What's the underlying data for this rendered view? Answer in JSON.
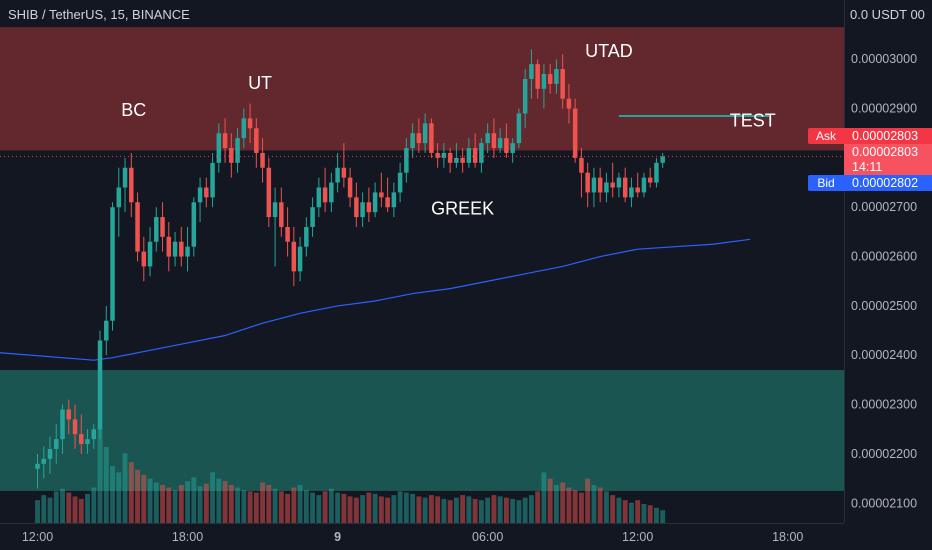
{
  "header": {
    "symbol_title": "SHIB / TetherUS, 15, BINANCE"
  },
  "price_scale": {
    "currency": "0.0 USDT 00"
  },
  "quote": {
    "ask_label": "Ask",
    "ask_price": "0.00002803",
    "last_price": "0.00002803",
    "countdown": "14:11",
    "bid_label": "Bid",
    "bid_price": "0.00002802"
  },
  "colors": {
    "background": "#131722",
    "up": "#26a69a",
    "down": "#ef5350",
    "upper_zone": "#6d2a2f",
    "lower_zone": "#1d5c57",
    "ma_line": "#2962ff",
    "ask": "#f23645",
    "bid": "#2962ff",
    "test_line": "#26a69a"
  },
  "chart_data": {
    "type": "candlestick",
    "title": "SHIB / TetherUS, 15, BINANCE",
    "x_tick_labels": [
      "12:00",
      "18:00",
      "9",
      "06:00",
      "12:00",
      "18:00"
    ],
    "y_tick_labels": [
      "0.00003000",
      "0.00002900",
      "0.00002800",
      "0.00002700",
      "0.00002600",
      "0.00002500",
      "0.00002400",
      "0.00002300",
      "0.00002200",
      "0.00002100"
    ],
    "x_tick_values": [
      0,
      24,
      48,
      72,
      96,
      120
    ],
    "y_tick_values": [
      3e-05,
      2.9e-05,
      2.8e-05,
      2.7e-05,
      2.6e-05,
      2.5e-05,
      2.4e-05,
      2.3e-05,
      2.2e-05,
      2.1e-05
    ],
    "ylim": [
      2.06e-05,
      3.12e-05
    ],
    "xlim": [
      -6,
      129
    ],
    "zones": [
      {
        "name": "upper-zone",
        "from": 2.815e-05,
        "to": 3.065e-05
      },
      {
        "name": "lower-zone",
        "from": 2.125e-05,
        "to": 2.37e-05
      }
    ],
    "horizontal_segments": [
      {
        "name": "test-line",
        "x_from": 93,
        "x_to": 117,
        "y": 2.885e-05
      }
    ],
    "annotations": [
      {
        "text": "BC",
        "x": 15.4,
        "y": 2.885e-05
      },
      {
        "text": "UT",
        "x": 35.6,
        "y": 2.94e-05
      },
      {
        "text": "GREEK",
        "x": 68.0,
        "y": 2.685e-05
      },
      {
        "text": "UTAD",
        "x": 91.4,
        "y": 3.004e-05
      },
      {
        "text": "TEST",
        "x": 114.4,
        "y": 2.864e-05
      }
    ],
    "moving_average": {
      "x": [
        -6,
        9,
        12,
        18,
        24,
        30,
        36,
        42,
        48,
        54,
        60,
        66,
        72,
        78,
        84,
        90,
        96,
        102,
        108,
        114
      ],
      "y": [
        2.405e-05,
        2.39e-05,
        2.395e-05,
        2.41e-05,
        2.425e-05,
        2.44e-05,
        2.465e-05,
        2.485e-05,
        2.5e-05,
        2.51e-05,
        2.525e-05,
        2.535e-05,
        2.55e-05,
        2.565e-05,
        2.58e-05,
        2.6e-05,
        2.615e-05,
        2.62e-05,
        2.625e-05,
        2.635e-05
      ]
    },
    "candles": [
      {
        "o": 2.17e-05,
        "h": 2.2e-05,
        "l": 2.13e-05,
        "c": 2.18e-05
      },
      {
        "o": 2.18e-05,
        "h": 2.215e-05,
        "l": 2.15e-05,
        "c": 2.19e-05
      },
      {
        "o": 2.19e-05,
        "h": 2.235e-05,
        "l": 2.16e-05,
        "c": 2.21e-05
      },
      {
        "o": 2.21e-05,
        "h": 2.26e-05,
        "l": 2.18e-05,
        "c": 2.23e-05
      },
      {
        "o": 2.23e-05,
        "h": 2.3e-05,
        "l": 2.2e-05,
        "c": 2.29e-05
      },
      {
        "o": 2.29e-05,
        "h": 2.31e-05,
        "l": 2.24e-05,
        "c": 2.27e-05
      },
      {
        "o": 2.27e-05,
        "h": 2.3e-05,
        "l": 2.21e-05,
        "c": 2.24e-05
      },
      {
        "o": 2.24e-05,
        "h": 2.28e-05,
        "l": 2.2e-05,
        "c": 2.22e-05
      },
      {
        "o": 2.22e-05,
        "h": 2.25e-05,
        "l": 2.2e-05,
        "c": 2.23e-05
      },
      {
        "o": 2.23e-05,
        "h": 2.26e-05,
        "l": 2.21e-05,
        "c": 2.25e-05
      },
      {
        "o": 2.25e-05,
        "h": 2.45e-05,
        "l": 2.23e-05,
        "c": 2.43e-05
      },
      {
        "o": 2.43e-05,
        "h": 2.5e-05,
        "l": 2.4e-05,
        "c": 2.47e-05
      },
      {
        "o": 2.47e-05,
        "h": 2.71e-05,
        "l": 2.45e-05,
        "c": 2.7e-05
      },
      {
        "o": 2.7e-05,
        "h": 2.78e-05,
        "l": 2.64e-05,
        "c": 2.74e-05
      },
      {
        "o": 2.74e-05,
        "h": 2.8e-05,
        "l": 2.69e-05,
        "c": 2.78e-05
      },
      {
        "o": 2.78e-05,
        "h": 2.81e-05,
        "l": 2.68e-05,
        "c": 2.71e-05
      },
      {
        "o": 2.71e-05,
        "h": 2.73e-05,
        "l": 2.59e-05,
        "c": 2.61e-05
      },
      {
        "o": 2.61e-05,
        "h": 2.64e-05,
        "l": 2.55e-05,
        "c": 2.58e-05
      },
      {
        "o": 2.58e-05,
        "h": 2.66e-05,
        "l": 2.56e-05,
        "c": 2.63e-05
      },
      {
        "o": 2.63e-05,
        "h": 2.7e-05,
        "l": 2.61e-05,
        "c": 2.68e-05
      },
      {
        "o": 2.68e-05,
        "h": 2.71e-05,
        "l": 2.61e-05,
        "c": 2.64e-05
      },
      {
        "o": 2.64e-05,
        "h": 2.67e-05,
        "l": 2.57e-05,
        "c": 2.6e-05
      },
      {
        "o": 2.6e-05,
        "h": 2.65e-05,
        "l": 2.58e-05,
        "c": 2.63e-05
      },
      {
        "o": 2.63e-05,
        "h": 2.66e-05,
        "l": 2.58e-05,
        "c": 2.6e-05
      },
      {
        "o": 2.6e-05,
        "h": 2.66e-05,
        "l": 2.57e-05,
        "c": 2.62e-05
      },
      {
        "o": 2.62e-05,
        "h": 2.72e-05,
        "l": 2.6e-05,
        "c": 2.71e-05
      },
      {
        "o": 2.71e-05,
        "h": 2.76e-05,
        "l": 2.67e-05,
        "c": 2.74e-05
      },
      {
        "o": 2.74e-05,
        "h": 2.76e-05,
        "l": 2.7e-05,
        "c": 2.72e-05
      },
      {
        "o": 2.72e-05,
        "h": 2.81e-05,
        "l": 2.7e-05,
        "c": 2.79e-05
      },
      {
        "o": 2.79e-05,
        "h": 2.87e-05,
        "l": 2.77e-05,
        "c": 2.85e-05
      },
      {
        "o": 2.85e-05,
        "h": 2.88e-05,
        "l": 2.79e-05,
        "c": 2.82e-05
      },
      {
        "o": 2.82e-05,
        "h": 2.85e-05,
        "l": 2.76e-05,
        "c": 2.79e-05
      },
      {
        "o": 2.79e-05,
        "h": 2.86e-05,
        "l": 2.77e-05,
        "c": 2.84e-05
      },
      {
        "o": 2.84e-05,
        "h": 2.9e-05,
        "l": 2.82e-05,
        "c": 2.88e-05
      },
      {
        "o": 2.88e-05,
        "h": 2.91e-05,
        "l": 2.83e-05,
        "c": 2.86e-05
      },
      {
        "o": 2.86e-05,
        "h": 2.88e-05,
        "l": 2.78e-05,
        "c": 2.81e-05
      },
      {
        "o": 2.81e-05,
        "h": 2.84e-05,
        "l": 2.75e-05,
        "c": 2.78e-05
      },
      {
        "o": 2.78e-05,
        "h": 2.8e-05,
        "l": 2.66e-05,
        "c": 2.68e-05
      },
      {
        "o": 2.68e-05,
        "h": 2.74e-05,
        "l": 2.58e-05,
        "c": 2.71e-05
      },
      {
        "o": 2.71e-05,
        "h": 2.74e-05,
        "l": 2.64e-05,
        "c": 2.66e-05
      },
      {
        "o": 2.66e-05,
        "h": 2.7e-05,
        "l": 2.6e-05,
        "c": 2.63e-05
      },
      {
        "o": 2.63e-05,
        "h": 2.66e-05,
        "l": 2.54e-05,
        "c": 2.57e-05
      },
      {
        "o": 2.57e-05,
        "h": 2.64e-05,
        "l": 2.55e-05,
        "c": 2.62e-05
      },
      {
        "o": 2.62e-05,
        "h": 2.68e-05,
        "l": 2.6e-05,
        "c": 2.66e-05
      },
      {
        "o": 2.66e-05,
        "h": 2.72e-05,
        "l": 2.64e-05,
        "c": 2.7e-05
      },
      {
        "o": 2.7e-05,
        "h": 2.76e-05,
        "l": 2.68e-05,
        "c": 2.74e-05
      },
      {
        "o": 2.74e-05,
        "h": 2.78e-05,
        "l": 2.69e-05,
        "c": 2.71e-05
      },
      {
        "o": 2.71e-05,
        "h": 2.77e-05,
        "l": 2.69e-05,
        "c": 2.75e-05
      },
      {
        "o": 2.75e-05,
        "h": 2.81e-05,
        "l": 2.73e-05,
        "c": 2.78e-05
      },
      {
        "o": 2.78e-05,
        "h": 2.83e-05,
        "l": 2.74e-05,
        "c": 2.76e-05
      },
      {
        "o": 2.76e-05,
        "h": 2.78e-05,
        "l": 2.7e-05,
        "c": 2.72e-05
      },
      {
        "o": 2.72e-05,
        "h": 2.75e-05,
        "l": 2.66e-05,
        "c": 2.68e-05
      },
      {
        "o": 2.68e-05,
        "h": 2.73e-05,
        "l": 2.66e-05,
        "c": 2.71e-05
      },
      {
        "o": 2.71e-05,
        "h": 2.74e-05,
        "l": 2.67e-05,
        "c": 2.69e-05
      },
      {
        "o": 2.69e-05,
        "h": 2.75e-05,
        "l": 2.68e-05,
        "c": 2.73e-05
      },
      {
        "o": 2.73e-05,
        "h": 2.77e-05,
        "l": 2.7e-05,
        "c": 2.72e-05
      },
      {
        "o": 2.72e-05,
        "h": 2.76e-05,
        "l": 2.69e-05,
        "c": 2.7e-05
      },
      {
        "o": 2.7e-05,
        "h": 2.75e-05,
        "l": 2.68e-05,
        "c": 2.73e-05
      },
      {
        "o": 2.73e-05,
        "h": 2.79e-05,
        "l": 2.71e-05,
        "c": 2.77e-05
      },
      {
        "o": 2.77e-05,
        "h": 2.84e-05,
        "l": 2.75e-05,
        "c": 2.82e-05
      },
      {
        "o": 2.82e-05,
        "h": 2.87e-05,
        "l": 2.8e-05,
        "c": 2.85e-05
      },
      {
        "o": 2.85e-05,
        "h": 2.88e-05,
        "l": 2.81e-05,
        "c": 2.83e-05
      },
      {
        "o": 2.83e-05,
        "h": 2.89e-05,
        "l": 2.81e-05,
        "c": 2.87e-05
      },
      {
        "o": 2.87e-05,
        "h": 2.88e-05,
        "l": 2.8e-05,
        "c": 2.81e-05
      },
      {
        "o": 2.81e-05,
        "h": 2.83e-05,
        "l": 2.78e-05,
        "c": 2.8e-05
      },
      {
        "o": 2.8e-05,
        "h": 2.83e-05,
        "l": 2.78e-05,
        "c": 2.81e-05
      },
      {
        "o": 2.81e-05,
        "h": 2.82e-05,
        "l": 2.77e-05,
        "c": 2.79e-05
      },
      {
        "o": 2.79e-05,
        "h": 2.83e-05,
        "l": 2.78e-05,
        "c": 2.8e-05
      },
      {
        "o": 2.8e-05,
        "h": 2.82e-05,
        "l": 2.77e-05,
        "c": 2.79e-05
      },
      {
        "o": 2.79e-05,
        "h": 2.84e-05,
        "l": 2.78e-05,
        "c": 2.82e-05
      },
      {
        "o": 2.82e-05,
        "h": 2.85e-05,
        "l": 2.78e-05,
        "c": 2.79e-05
      },
      {
        "o": 2.79e-05,
        "h": 2.84e-05,
        "l": 2.77e-05,
        "c": 2.83e-05
      },
      {
        "o": 2.83e-05,
        "h": 2.87e-05,
        "l": 2.81e-05,
        "c": 2.85e-05
      },
      {
        "o": 2.85e-05,
        "h": 2.88e-05,
        "l": 2.8e-05,
        "c": 2.82e-05
      },
      {
        "o": 2.82e-05,
        "h": 2.86e-05,
        "l": 2.81e-05,
        "c": 2.84e-05
      },
      {
        "o": 2.84e-05,
        "h": 2.87e-05,
        "l": 2.8e-05,
        "c": 2.81e-05
      },
      {
        "o": 2.81e-05,
        "h": 2.84e-05,
        "l": 2.79e-05,
        "c": 2.83e-05
      },
      {
        "o": 2.83e-05,
        "h": 2.9e-05,
        "l": 2.82e-05,
        "c": 2.89e-05
      },
      {
        "o": 2.89e-05,
        "h": 2.98e-05,
        "l": 2.86e-05,
        "c": 2.96e-05
      },
      {
        "o": 2.96e-05,
        "h": 3.02e-05,
        "l": 2.92e-05,
        "c": 2.99e-05
      },
      {
        "o": 2.99e-05,
        "h": 3e-05,
        "l": 2.92e-05,
        "c": 2.94e-05
      },
      {
        "o": 2.94e-05,
        "h": 2.99e-05,
        "l": 2.9e-05,
        "c": 2.97e-05
      },
      {
        "o": 2.97e-05,
        "h": 2.99e-05,
        "l": 2.93e-05,
        "c": 2.95e-05
      },
      {
        "o": 2.95e-05,
        "h": 3e-05,
        "l": 2.93e-05,
        "c": 2.98e-05
      },
      {
        "o": 2.98e-05,
        "h": 3.01e-05,
        "l": 2.9e-05,
        "c": 2.92e-05
      },
      {
        "o": 2.92e-05,
        "h": 2.95e-05,
        "l": 2.87e-05,
        "c": 2.9e-05
      },
      {
        "o": 2.9e-05,
        "h": 2.92e-05,
        "l": 2.79e-05,
        "c": 2.8e-05
      },
      {
        "o": 2.8e-05,
        "h": 2.82e-05,
        "l": 2.72e-05,
        "c": 2.77e-05
      },
      {
        "o": 2.77e-05,
        "h": 2.79e-05,
        "l": 2.7e-05,
        "c": 2.73e-05
      },
      {
        "o": 2.73e-05,
        "h": 2.78e-05,
        "l": 2.7e-05,
        "c": 2.76e-05
      },
      {
        "o": 2.76e-05,
        "h": 2.78e-05,
        "l": 2.71e-05,
        "c": 2.73e-05
      },
      {
        "o": 2.73e-05,
        "h": 2.77e-05,
        "l": 2.71e-05,
        "c": 2.75e-05
      },
      {
        "o": 2.75e-05,
        "h": 2.79e-05,
        "l": 2.72e-05,
        "c": 2.74e-05
      },
      {
        "o": 2.74e-05,
        "h": 2.77e-05,
        "l": 2.72e-05,
        "c": 2.76e-05
      },
      {
        "o": 2.76e-05,
        "h": 2.78e-05,
        "l": 2.71e-05,
        "c": 2.72e-05
      },
      {
        "o": 2.72e-05,
        "h": 2.76e-05,
        "l": 2.7e-05,
        "c": 2.74e-05
      },
      {
        "o": 2.74e-05,
        "h": 2.77e-05,
        "l": 2.72e-05,
        "c": 2.73e-05
      },
      {
        "o": 2.73e-05,
        "h": 2.77e-05,
        "l": 2.72e-05,
        "c": 2.76e-05
      },
      {
        "o": 2.76e-05,
        "h": 2.78e-05,
        "l": 2.74e-05,
        "c": 2.75e-05
      },
      {
        "o": 2.75e-05,
        "h": 2.8e-05,
        "l": 2.74e-05,
        "c": 2.79e-05
      },
      {
        "o": 2.79e-05,
        "h": 2.81e-05,
        "l": 2.78e-05,
        "c": 2.803e-05
      }
    ],
    "volumes": [
      18,
      22,
      20,
      25,
      27,
      24,
      21,
      19,
      23,
      28,
      75,
      60,
      45,
      40,
      55,
      48,
      42,
      38,
      35,
      32,
      30,
      28,
      26,
      30,
      33,
      36,
      29,
      31,
      40,
      35,
      33,
      30,
      28,
      26,
      25,
      24,
      32,
      30,
      27,
      25,
      23,
      28,
      30,
      26,
      24,
      22,
      25,
      27,
      24,
      23,
      21,
      20,
      22,
      24,
      23,
      21,
      20,
      22,
      25,
      24,
      23,
      21,
      20,
      22,
      21,
      19,
      18,
      20,
      22,
      21,
      19,
      18,
      20,
      22,
      21,
      20,
      19,
      18,
      20,
      22,
      25,
      40,
      35,
      30,
      32,
      28,
      26,
      24,
      35,
      30,
      28,
      25,
      22,
      20,
      18,
      16,
      18,
      15,
      14,
      12,
      10
    ]
  }
}
